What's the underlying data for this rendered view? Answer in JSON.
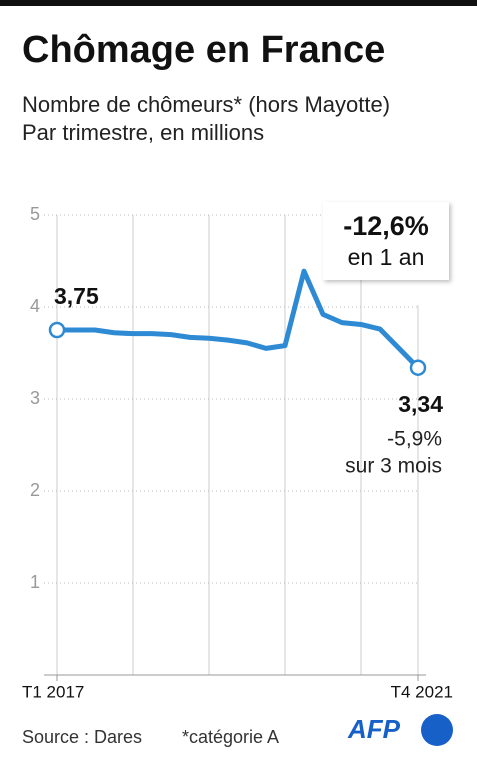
{
  "chart_data": {
    "type": "line",
    "title": "Chômage en France",
    "subtitle": [
      "Nombre de chômeurs* (hors Mayotte)",
      "Par trimestre, en millions"
    ],
    "categories": [
      "T1 2017",
      null,
      null,
      null,
      null,
      null,
      null,
      null,
      null,
      null,
      null,
      null,
      null,
      null,
      null,
      null,
      null,
      null,
      null,
      "T4 2021"
    ],
    "series": [
      {
        "color": "#2f8ad4",
        "values": [
          3.75,
          3.75,
          3.75,
          3.72,
          3.71,
          3.71,
          3.7,
          3.67,
          3.66,
          3.64,
          3.61,
          3.55,
          3.58,
          4.39,
          3.92,
          3.83,
          3.81,
          3.76,
          3.55,
          3.34
        ],
        "value_labels": [
          "3,75",
          null,
          null,
          null,
          null,
          null,
          null,
          null,
          null,
          null,
          null,
          null,
          null,
          null,
          null,
          null,
          null,
          null,
          null,
          "3,34"
        ]
      }
    ],
    "ylim": [
      0,
      5
    ],
    "yticks": [
      1,
      2,
      3,
      4,
      5
    ],
    "grid": true,
    "annotations": [
      "-12,6%",
      "en 1 an",
      "-5,9%",
      "sur 3 mois"
    ],
    "source": "Source : Dares",
    "note": "*catégorie A",
    "logo": "AFP"
  }
}
